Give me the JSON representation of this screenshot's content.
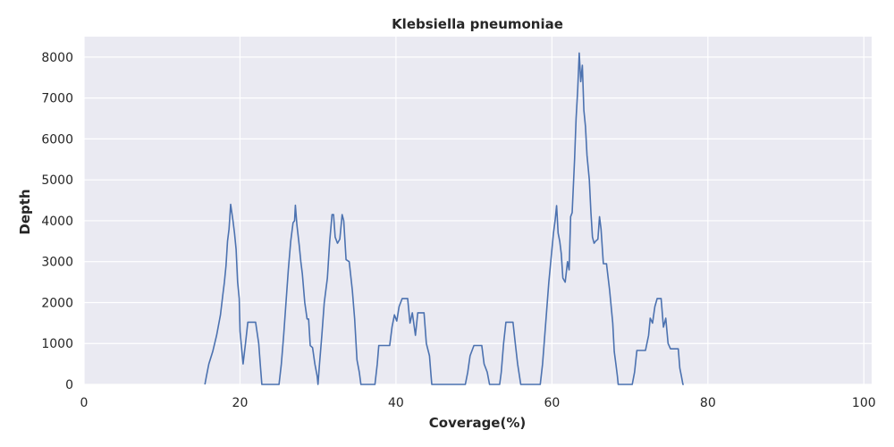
{
  "chart_data": {
    "type": "line",
    "title": "Klebsiella pneumoniae",
    "xlabel": "Coverage(%)",
    "ylabel": "Depth",
    "xlim": [
      0,
      101
    ],
    "ylim": [
      0,
      8500
    ],
    "xticks": [
      0,
      20,
      40,
      60,
      80,
      100
    ],
    "yticks": [
      0,
      1000,
      2000,
      3000,
      4000,
      5000,
      6000,
      7000,
      8000
    ],
    "grid": true,
    "background": "#eaeaf2",
    "line_color": "#4c72b0",
    "series": [
      {
        "points": [
          [
            15.5,
            0
          ],
          [
            15.7,
            200
          ],
          [
            16.0,
            500
          ],
          [
            16.5,
            800
          ],
          [
            17.0,
            1200
          ],
          [
            17.5,
            1700
          ],
          [
            17.8,
            2200
          ],
          [
            18.0,
            2500
          ],
          [
            18.2,
            2900
          ],
          [
            18.4,
            3500
          ],
          [
            18.6,
            3800
          ],
          [
            18.8,
            4400
          ],
          [
            19.1,
            4000
          ],
          [
            19.3,
            3700
          ],
          [
            19.5,
            3300
          ],
          [
            19.7,
            2500
          ],
          [
            19.9,
            2100
          ],
          [
            20.0,
            1300
          ],
          [
            20.2,
            900
          ],
          [
            20.4,
            500
          ],
          [
            20.7,
            1000
          ],
          [
            21.0,
            1520
          ],
          [
            21.5,
            1520
          ],
          [
            22.0,
            1520
          ],
          [
            22.4,
            1000
          ],
          [
            22.6,
            500
          ],
          [
            22.8,
            0
          ],
          [
            22.9,
            0
          ],
          [
            25.0,
            0
          ],
          [
            25.3,
            500
          ],
          [
            25.6,
            1200
          ],
          [
            25.9,
            2000
          ],
          [
            26.2,
            2800
          ],
          [
            26.5,
            3500
          ],
          [
            26.8,
            3950
          ],
          [
            27.0,
            4000
          ],
          [
            27.1,
            4380
          ],
          [
            27.3,
            3900
          ],
          [
            27.6,
            3400
          ],
          [
            27.8,
            3000
          ],
          [
            28.0,
            2700
          ],
          [
            28.3,
            2000
          ],
          [
            28.6,
            1600
          ],
          [
            28.8,
            1600
          ],
          [
            29.0,
            950
          ],
          [
            29.3,
            900
          ],
          [
            29.6,
            500
          ],
          [
            29.9,
            200
          ],
          [
            30.0,
            0
          ],
          [
            30.2,
            500
          ],
          [
            30.5,
            1200
          ],
          [
            30.8,
            2000
          ],
          [
            31.2,
            2600
          ],
          [
            31.5,
            3500
          ],
          [
            31.8,
            4150
          ],
          [
            32.0,
            4150
          ],
          [
            32.2,
            3600
          ],
          [
            32.5,
            3450
          ],
          [
            32.8,
            3550
          ],
          [
            33.1,
            4150
          ],
          [
            33.3,
            4000
          ],
          [
            33.6,
            3050
          ],
          [
            34.0,
            3000
          ],
          [
            34.4,
            2300
          ],
          [
            34.7,
            1600
          ],
          [
            35.0,
            600
          ],
          [
            35.3,
            300
          ],
          [
            35.5,
            0
          ],
          [
            35.6,
            0
          ],
          [
            37.3,
            0
          ],
          [
            37.6,
            500
          ],
          [
            37.8,
            950
          ],
          [
            38.5,
            950
          ],
          [
            39.2,
            950
          ],
          [
            39.5,
            1400
          ],
          [
            39.8,
            1700
          ],
          [
            40.1,
            1550
          ],
          [
            40.4,
            1900
          ],
          [
            40.8,
            2100
          ],
          [
            41.5,
            2100
          ],
          [
            41.8,
            1500
          ],
          [
            42.1,
            1750
          ],
          [
            42.5,
            1200
          ],
          [
            42.8,
            1750
          ],
          [
            43.6,
            1750
          ],
          [
            43.9,
            1000
          ],
          [
            44.3,
            700
          ],
          [
            44.5,
            200
          ],
          [
            44.6,
            0
          ],
          [
            44.7,
            0
          ],
          [
            48.9,
            0
          ],
          [
            49.2,
            300
          ],
          [
            49.5,
            700
          ],
          [
            50.0,
            950
          ],
          [
            51.0,
            950
          ],
          [
            51.3,
            500
          ],
          [
            51.7,
            300
          ],
          [
            52.0,
            0
          ],
          [
            52.1,
            0
          ],
          [
            53.3,
            0
          ],
          [
            53.5,
            300
          ],
          [
            53.8,
            1000
          ],
          [
            54.1,
            1520
          ],
          [
            55.0,
            1520
          ],
          [
            55.3,
            1000
          ],
          [
            55.6,
            500
          ],
          [
            56.0,
            0
          ],
          [
            56.1,
            0
          ],
          [
            58.5,
            0
          ],
          [
            58.8,
            500
          ],
          [
            59.2,
            1500
          ],
          [
            59.6,
            2500
          ],
          [
            59.9,
            3100
          ],
          [
            60.2,
            3700
          ],
          [
            60.4,
            4000
          ],
          [
            60.6,
            4370
          ],
          [
            60.8,
            3700
          ],
          [
            61.0,
            3500
          ],
          [
            61.2,
            3200
          ],
          [
            61.4,
            2600
          ],
          [
            61.7,
            2500
          ],
          [
            62.0,
            3000
          ],
          [
            62.2,
            2800
          ],
          [
            62.4,
            4100
          ],
          [
            62.6,
            4200
          ],
          [
            62.9,
            5500
          ],
          [
            63.1,
            6500
          ],
          [
            63.3,
            7200
          ],
          [
            63.5,
            8100
          ],
          [
            63.7,
            7400
          ],
          [
            63.9,
            7800
          ],
          [
            64.1,
            6700
          ],
          [
            64.3,
            6300
          ],
          [
            64.5,
            5600
          ],
          [
            64.8,
            5000
          ],
          [
            65.0,
            4200
          ],
          [
            65.2,
            3600
          ],
          [
            65.4,
            3450
          ],
          [
            65.6,
            3500
          ],
          [
            65.9,
            3550
          ],
          [
            66.1,
            4100
          ],
          [
            66.3,
            3800
          ],
          [
            66.6,
            2950
          ],
          [
            67.0,
            2950
          ],
          [
            67.4,
            2300
          ],
          [
            67.8,
            1500
          ],
          [
            68.0,
            800
          ],
          [
            68.2,
            500
          ],
          [
            68.4,
            200
          ],
          [
            68.5,
            0
          ],
          [
            68.6,
            0
          ],
          [
            70.3,
            0
          ],
          [
            70.6,
            300
          ],
          [
            70.9,
            830
          ],
          [
            72.0,
            830
          ],
          [
            72.4,
            1200
          ],
          [
            72.6,
            1620
          ],
          [
            72.9,
            1500
          ],
          [
            73.2,
            1900
          ],
          [
            73.5,
            2100
          ],
          [
            74.0,
            2100
          ],
          [
            74.3,
            1400
          ],
          [
            74.6,
            1620
          ],
          [
            74.9,
            1000
          ],
          [
            75.2,
            870
          ],
          [
            76.2,
            870
          ],
          [
            76.4,
            400
          ],
          [
            76.6,
            200
          ],
          [
            76.8,
            0
          ],
          [
            76.9,
            0
          ]
        ]
      }
    ]
  }
}
